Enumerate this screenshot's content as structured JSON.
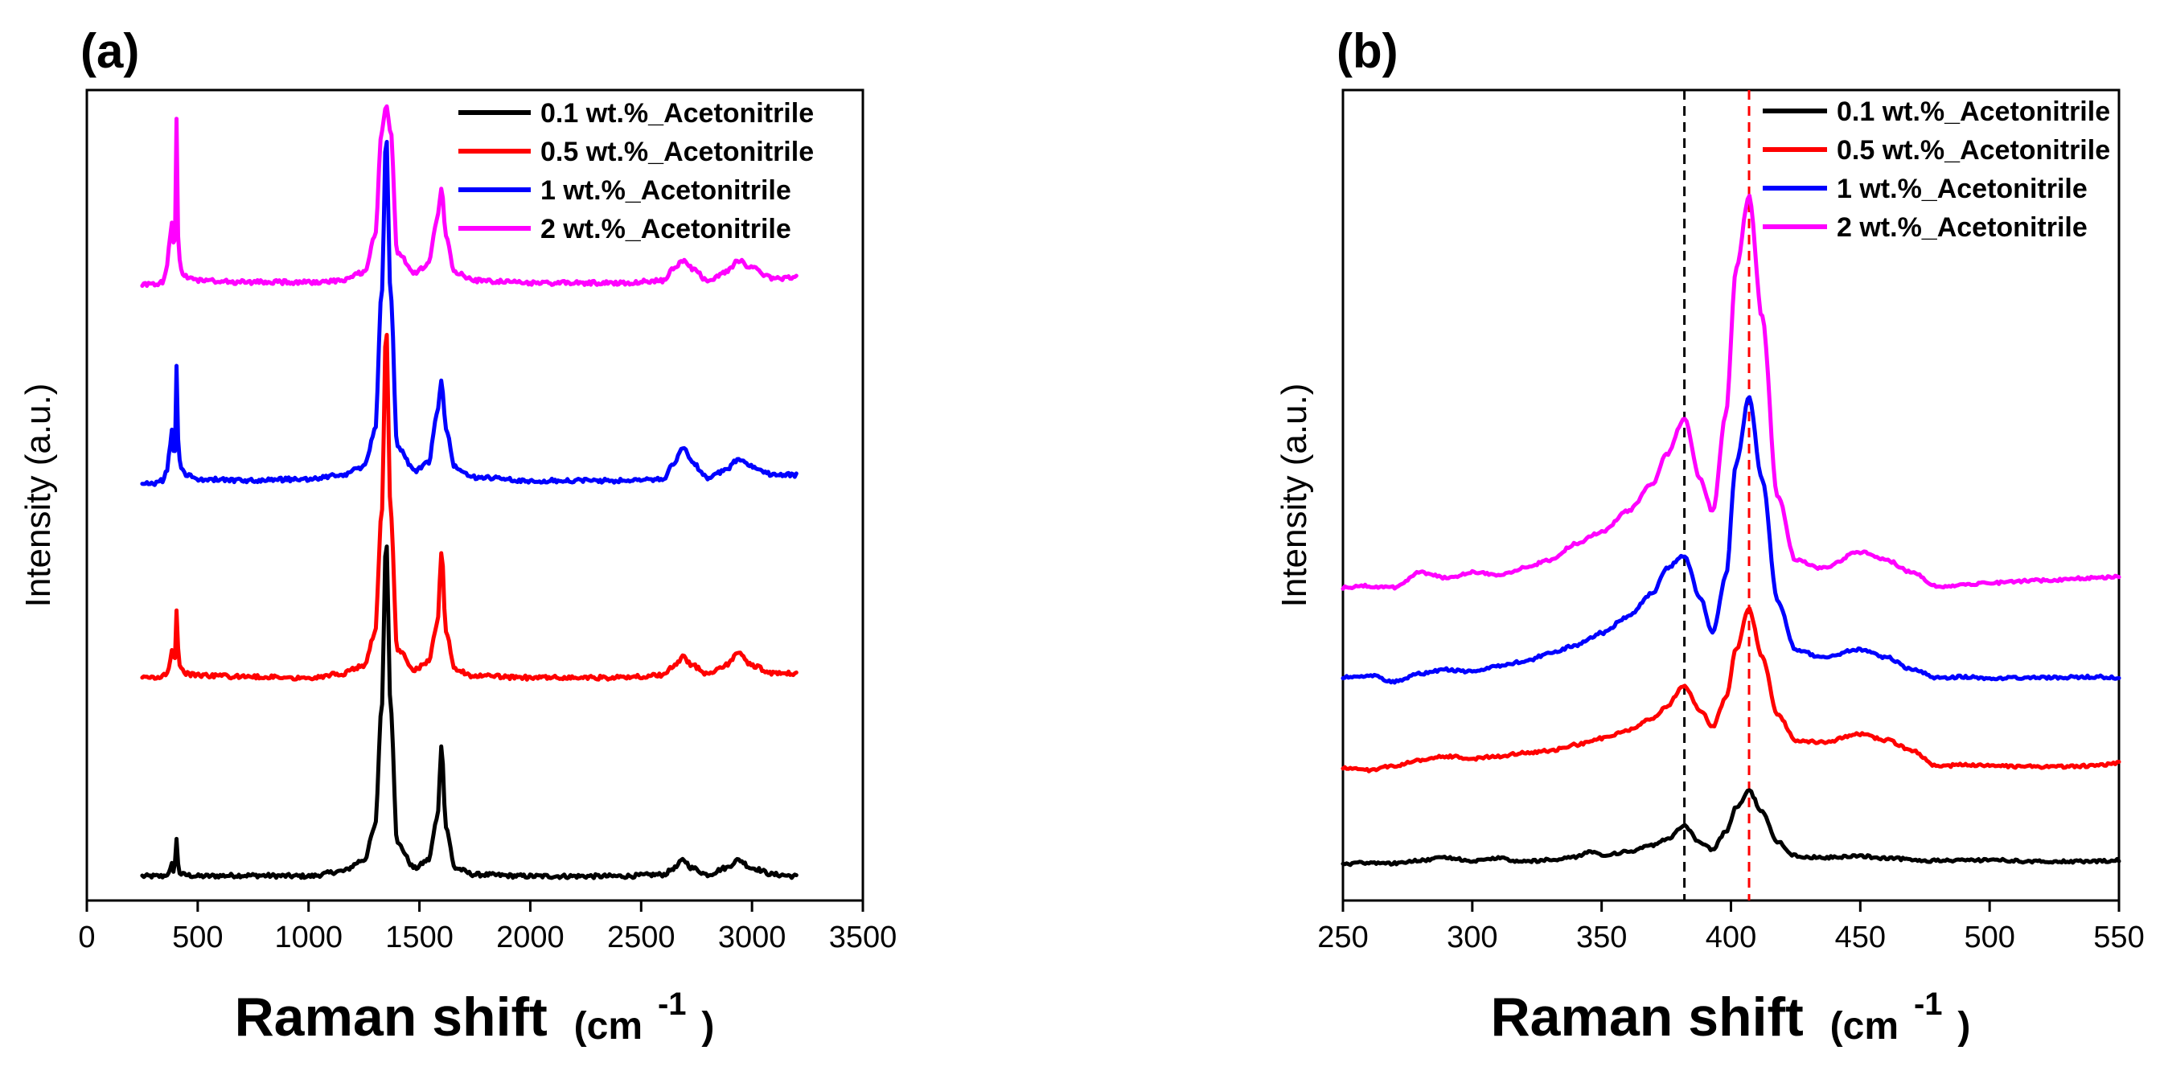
{
  "figure": {
    "series_colors": {
      "0.1 wt.%_Acetonitrile": "#000000",
      "0.5 wt.%_Acetonitrile": "#ff0000",
      "1 wt.%_Acetonitrile": "#0000ff",
      "2 wt.%_Acetonitrile": "#ff00ff"
    }
  },
  "chart_data": [
    {
      "type": "line",
      "panel_label": "(a)",
      "title": "",
      "xlabel": "Raman shift",
      "xlabel_unit_prefix": "(cm",
      "xlabel_unit_exp": "-1",
      "xlabel_unit_suffix": ")",
      "ylabel": "Intensity (a.u.)",
      "xlim": [
        0,
        3500
      ],
      "ylim": [
        0,
        100
      ],
      "xticks": [
        "0",
        "500",
        "1000",
        "1500",
        "2000",
        "2500",
        "3000",
        "3500"
      ],
      "yticks": [],
      "grid": false,
      "legend_position": "top-right",
      "series": [
        {
          "name": "0.1 wt.%_Acetonitrile",
          "color": "#000000",
          "baseline": 3,
          "x": [
            250,
            300,
            340,
            370,
            385,
            393,
            405,
            415,
            430,
            500,
            700,
            1000,
            1150,
            1250,
            1300,
            1330,
            1350,
            1370,
            1400,
            1480,
            1540,
            1580,
            1600,
            1620,
            1660,
            1750,
            2000,
            2400,
            2600,
            2650,
            2690,
            2730,
            2800,
            2880,
            2940,
            3000,
            3100,
            3200
          ],
          "y": [
            3,
            3,
            3,
            3.3,
            4.5,
            3.5,
            7.5,
            3.5,
            3.2,
            3,
            3.1,
            3,
            3.6,
            5,
            9,
            24,
            45,
            24,
            7,
            4,
            5,
            10,
            19,
            9,
            4,
            3.2,
            3,
            3,
            3.2,
            4,
            5,
            4,
            3.2,
            4,
            5,
            4,
            3.2,
            3
          ]
        },
        {
          "name": "0.5 wt.%_Acetonitrile",
          "color": "#ff0000",
          "baseline": 27.5,
          "x": [
            250,
            300,
            350,
            370,
            385,
            393,
            400,
            405,
            410,
            420,
            440,
            500,
            700,
            1000,
            1150,
            1250,
            1300,
            1330,
            1350,
            1370,
            1400,
            1480,
            1540,
            1580,
            1600,
            1620,
            1660,
            1750,
            2000,
            2400,
            2600,
            2650,
            2690,
            2730,
            2800,
            2880,
            2940,
            3000,
            3100,
            3200
          ],
          "y": [
            27.5,
            27.5,
            27.8,
            28.5,
            31,
            29.5,
            30,
            36,
            31.5,
            29,
            28,
            27.8,
            27.6,
            27.5,
            28,
            29,
            33,
            48,
            71,
            48,
            31,
            28.5,
            29.5,
            34,
            43,
            33,
            28.5,
            27.7,
            27.5,
            27.5,
            27.8,
            29,
            30,
            29,
            28,
            29,
            30.5,
            29,
            28,
            28
          ]
        },
        {
          "name": "1 wt.%_Acetonitrile",
          "color": "#0000ff",
          "baseline": 51.5,
          "x": [
            250,
            300,
            340,
            360,
            375,
            385,
            393,
            400,
            405,
            410,
            420,
            430,
            450,
            500,
            700,
            1000,
            1150,
            1250,
            1300,
            1330,
            1350,
            1370,
            1400,
            1480,
            1540,
            1580,
            1600,
            1620,
            1660,
            1750,
            2000,
            2400,
            2600,
            2650,
            2690,
            2730,
            2800,
            2880,
            2940,
            3000,
            3100,
            3200
          ],
          "y": [
            51.5,
            51.5,
            51.8,
            53,
            56,
            58,
            54.5,
            56,
            66,
            57,
            54,
            53,
            52.5,
            52,
            51.8,
            52,
            52.5,
            53.5,
            58,
            75,
            94.5,
            75,
            56,
            53,
            54,
            60,
            64,
            58,
            53.5,
            52.2,
            51.8,
            51.8,
            52,
            54,
            56,
            54,
            52.2,
            53,
            54.5,
            53.5,
            52.5,
            52.5
          ]
        },
        {
          "name": "2 wt.%_Acetonitrile",
          "color": "#ff00ff",
          "baseline": 76,
          "x": [
            250,
            300,
            340,
            360,
            375,
            385,
            393,
            400,
            405,
            410,
            420,
            430,
            450,
            500,
            700,
            1000,
            1150,
            1250,
            1300,
            1330,
            1350,
            1370,
            1400,
            1480,
            1540,
            1580,
            1600,
            1620,
            1660,
            1750,
            2000,
            2400,
            2600,
            2650,
            2690,
            2730,
            2800,
            2880,
            2940,
            3000,
            3100,
            3200
          ],
          "y": [
            76,
            76,
            76.3,
            78,
            82,
            84,
            80,
            82,
            97,
            82,
            79,
            77.5,
            77,
            76.5,
            76.3,
            76.3,
            76.5,
            77.5,
            82,
            95,
            98,
            95,
            80,
            77.5,
            78.5,
            84,
            88,
            82,
            77.5,
            76.5,
            76.2,
            76.2,
            76.5,
            78,
            79,
            78,
            76.5,
            77.5,
            79,
            78,
            76.7,
            77
          ]
        }
      ]
    },
    {
      "type": "line",
      "panel_label": "(b)",
      "title": "",
      "xlabel": "Raman shift",
      "xlabel_unit_prefix": "(cm",
      "xlabel_unit_exp": "-1",
      "xlabel_unit_suffix": ")",
      "ylabel": "Intensity (a.u.)",
      "xlim": [
        250,
        550
      ],
      "ylim": [
        0,
        100
      ],
      "xticks": [
        "250",
        "300",
        "350",
        "400",
        "450",
        "500",
        "550"
      ],
      "yticks": [],
      "grid": false,
      "legend_position": "top-right",
      "reference_lines": [
        {
          "x": 382,
          "color": "#000000",
          "style": "dashed"
        },
        {
          "x": 407,
          "color": "#ff0000",
          "style": "dashed"
        }
      ],
      "series": [
        {
          "name": "0.1 wt.%_Acetonitrile",
          "color": "#000000",
          "x": [
            250,
            260,
            270,
            280,
            290,
            300,
            310,
            320,
            330,
            340,
            345,
            350,
            360,
            370,
            375,
            382,
            388,
            393,
            398,
            402,
            407,
            412,
            418,
            425,
            435,
            450,
            460,
            480,
            500,
            520,
            540,
            550
          ],
          "y": [
            4.5,
            4.7,
            4.6,
            5,
            5.3,
            4.9,
            5.2,
            4.8,
            5,
            5.4,
            6,
            5.6,
            6,
            6.8,
            7.5,
            9.2,
            7.2,
            6.3,
            8.5,
            11.5,
            13.5,
            11,
            7.2,
            5.5,
            5.3,
            5.5,
            5.2,
            4.9,
            5,
            4.8,
            4.8,
            5
          ]
        },
        {
          "name": "0.5 wt.%_Acetonitrile",
          "color": "#ff0000",
          "x": [
            250,
            260,
            270,
            280,
            290,
            300,
            310,
            320,
            330,
            340,
            350,
            360,
            370,
            375,
            382,
            388,
            393,
            398,
            402,
            407,
            412,
            418,
            425,
            435,
            450,
            460,
            470,
            480,
            490,
            500,
            520,
            540,
            550
          ],
          "y": [
            16.3,
            16.1,
            16.6,
            17.3,
            17.8,
            17.5,
            17.8,
            18.2,
            18.5,
            19.2,
            20,
            21,
            22.5,
            24,
            26.5,
            23.5,
            21.5,
            25,
            31,
            36,
            30,
            23,
            19.8,
            19.5,
            20.5,
            19.8,
            18.5,
            16.5,
            16.8,
            16.6,
            16.5,
            16.6,
            17
          ]
        },
        {
          "name": "1 wt.%_Acetonitrile",
          "color": "#0000ff",
          "x": [
            250,
            260,
            270,
            280,
            290,
            300,
            310,
            320,
            330,
            340,
            350,
            360,
            370,
            375,
            382,
            388,
            393,
            398,
            402,
            407,
            412,
            418,
            425,
            435,
            450,
            460,
            470,
            480,
            490,
            500,
            520,
            540,
            550
          ],
          "y": [
            27.5,
            27.8,
            27,
            28,
            28.5,
            28.2,
            29,
            29.5,
            30.5,
            31.5,
            33,
            35,
            38,
            41,
            42.5,
            37.5,
            33,
            40,
            54,
            62,
            52,
            37,
            31,
            30,
            31,
            30,
            28.5,
            27.5,
            27.6,
            27.4,
            27.5,
            27.6,
            27.5
          ]
        },
        {
          "name": "2 wt.%_Acetonitrile",
          "color": "#ff00ff",
          "x": [
            250,
            260,
            270,
            280,
            290,
            300,
            310,
            320,
            330,
            340,
            350,
            360,
            370,
            375,
            382,
            388,
            393,
            398,
            402,
            407,
            412,
            418,
            425,
            435,
            450,
            460,
            470,
            480,
            490,
            500,
            520,
            540,
            550
          ],
          "y": [
            38.6,
            38.8,
            38.6,
            40.5,
            39.8,
            40.5,
            40.2,
            41,
            42,
            44,
            45.5,
            48,
            51.5,
            55,
            59.5,
            52,
            48,
            60,
            78,
            87,
            72,
            50,
            42,
            41,
            43,
            42,
            40.5,
            38.7,
            39,
            39.2,
            39.5,
            39.8,
            40
          ]
        }
      ]
    }
  ]
}
